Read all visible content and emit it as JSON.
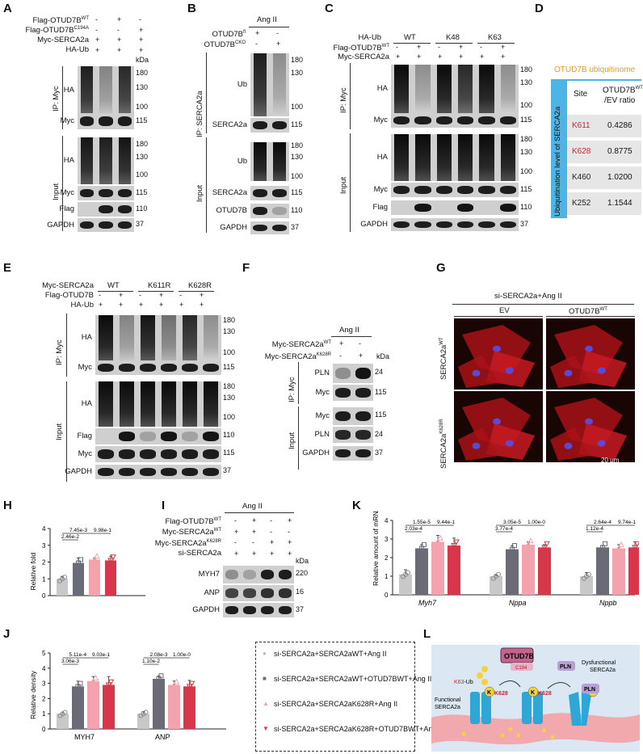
{
  "panels": {
    "A": {
      "letter": "A",
      "row_labels": [
        "Flag-OTUD7BWT",
        "Flag-OTUD7BC194A",
        "Myc-SERCA2a",
        "HA-Ub"
      ],
      "lane_signs": [
        [
          "-",
          "+",
          "-"
        ],
        [
          "-",
          "-",
          "+"
        ],
        [
          "+",
          "+",
          "+"
        ],
        [
          "+",
          "+",
          "+"
        ]
      ],
      "kda": "kDa",
      "blots": [
        "HA",
        "Myc",
        "HA",
        "Myc",
        "Flag",
        "GAPDH"
      ],
      "markers": [
        "180",
        "130",
        "100",
        "115",
        "180",
        "130",
        "100",
        "115",
        "110",
        "37"
      ],
      "group_labels": [
        "IP: Myc",
        "Input"
      ]
    },
    "B": {
      "letter": "B",
      "treatment": "Ang II",
      "row_labels": [
        "OTUD7Bfl",
        "OTUD7BCKO"
      ],
      "lane_signs": [
        [
          "+",
          "-"
        ],
        [
          "-",
          "+"
        ]
      ],
      "blots": [
        "Ub",
        "SERCA2a",
        "Ub",
        "SERCA2a",
        "OTUD7B",
        "GAPDH"
      ],
      "markers": [
        "180",
        "130",
        "100",
        "115",
        "180",
        "130",
        "100",
        "115",
        "110",
        "37"
      ],
      "group_labels": [
        "IP: SERCA2a",
        "Input"
      ]
    },
    "C": {
      "letter": "C",
      "row_labels": [
        "HA-Ub",
        "Flag-OTUD7BWT",
        "Myc-SERCA2a"
      ],
      "groups": [
        "WT",
        "K48",
        "K63"
      ],
      "lane_signs": [
        [
          "-",
          "+",
          "-",
          "+",
          "-",
          "+"
        ],
        [
          "+",
          "+",
          "+",
          "+",
          "+",
          "+"
        ]
      ],
      "kda": "kDa",
      "blots": [
        "HA",
        "Myc",
        "HA",
        "Myc",
        "Flag",
        "GAPDH"
      ],
      "markers": [
        "180",
        "130",
        "100",
        "115",
        "180",
        "130",
        "100",
        "115",
        "110",
        "37"
      ],
      "group_labels": [
        "IP: Myc",
        "Input"
      ]
    },
    "D": {
      "letter": "D",
      "title": "OTUD7B ubiquitinome",
      "side_label": "Ubiquitination level of SERCA2a",
      "col_site": "Site",
      "col_ratio": "OTUD7BWT /EV ratio",
      "rows": [
        {
          "site": "K611",
          "ratio": "0.4286",
          "color": "#d6202a"
        },
        {
          "site": "K628",
          "ratio": "0.8775",
          "color": "#d6202a"
        },
        {
          "site": "K460",
          "ratio": "1.0200",
          "color": "#222222"
        },
        {
          "site": "K252",
          "ratio": "1.1544",
          "color": "#222222"
        }
      ]
    },
    "E": {
      "letter": "E",
      "row_labels": [
        "Myc-SERCA2a",
        "Flag-OTUD7B",
        "HA-Ub"
      ],
      "groups": [
        "WT",
        "K611R",
        "K628R"
      ],
      "lane_signs": [
        [
          "-",
          "+",
          "-",
          "+",
          "-",
          "+"
        ],
        [
          "+",
          "+",
          "+",
          "+",
          "+",
          "+"
        ]
      ],
      "kda": "kDa",
      "blots": [
        "HA",
        "Myc",
        "HA",
        "Flag",
        "Myc",
        "GAPDH"
      ],
      "markers": [
        "180",
        "130",
        "100",
        "115",
        "180",
        "130",
        "100",
        "110",
        "115",
        "37"
      ],
      "group_labels": [
        "IP: Myc",
        "Input"
      ]
    },
    "F": {
      "letter": "F",
      "treatment": "Ang II",
      "row_labels": [
        "Myc-SERCA2aWT",
        "Myc-SERCA2aK628R"
      ],
      "lane_signs": [
        [
          "+",
          "-"
        ],
        [
          "-",
          "+"
        ]
      ],
      "kda": "kDa",
      "blots": [
        "PLN",
        "Myc",
        "Myc",
        "PLN",
        "GAPDH"
      ],
      "markers": [
        "24",
        "115",
        "115",
        "24",
        "37"
      ],
      "group_labels": [
        "IP: Myc",
        "Input"
      ]
    },
    "G": {
      "letter": "G",
      "header": "si-SERCA2a+Ang II",
      "cols": [
        "EV",
        "OTUD7BWT"
      ],
      "rows": [
        "SERCA2aWT",
        "SERCA2aK628R"
      ],
      "scale": "20 μm"
    },
    "H": {
      "letter": "H",
      "ylabel": "Relative fold"
    },
    "I": {
      "letter": "I",
      "treatment": "Ang II",
      "row_labels": [
        "Flag-OTUD7BWT",
        "Myc-SERCA2aWT",
        "Myc-SERCA2aK628R",
        "si-SERCA2a"
      ],
      "lane_signs": [
        [
          "-",
          "+",
          "-",
          "+"
        ],
        [
          "+",
          "+",
          "-",
          "-"
        ],
        [
          "-",
          "-",
          "+",
          "+"
        ],
        [
          "+",
          "+",
          "+",
          "+"
        ]
      ],
      "kda": "kDa",
      "blots": [
        "MYH7",
        "ANP",
        "GAPDH"
      ],
      "markers": [
        "220",
        "16",
        "37"
      ]
    },
    "J": {
      "letter": "J"
    },
    "K": {
      "letter": "K"
    },
    "L": {
      "letter": "L",
      "otud7b": "OTUD7B",
      "c194": "C194",
      "pln": "PLN",
      "k63": "K63-Ub",
      "k628": "K628",
      "functional": "Functional SERCA2a",
      "dysfunctional": "Dysfunctional SERCA2a"
    },
    "legend": {
      "items": [
        {
          "text": "si-SERCA2a+SERCA2aWT+Ang II",
          "color": "#b9b9b9",
          "shape": "circle"
        },
        {
          "text": "si-SERCA2a+SERCA2aWT+OTUD7BWT+Ang II",
          "color": "#6b6b78",
          "shape": "square"
        },
        {
          "text": "si-SERCA2a+SERCA2aK628R+Ang II",
          "color": "#f4a3ae",
          "shape": "triangle"
        },
        {
          "text": "si-SERCA2a+SERCA2aK628R+OTUD7BWT+Ang II",
          "color": "#d8364a",
          "shape": "triangle-down"
        }
      ]
    }
  },
  "chart_data": [
    {
      "type": "bar",
      "panel": "H",
      "ylabel": "Relative fold",
      "categories": [
        "SERCA2aWT+Ang II",
        "SERCA2aWT+OTUD7BWT+Ang II",
        "SERCA2aK628R+Ang II",
        "SERCA2aK628R+OTUD7BWT+Ang II"
      ],
      "values": [
        1.0,
        1.95,
        2.15,
        2.1
      ],
      "errors": [
        0.15,
        0.3,
        0.1,
        0.25
      ],
      "colors": [
        "#c8c8c8",
        "#6b6b78",
        "#f4a3ae",
        "#d8364a"
      ],
      "ylim": [
        0,
        4
      ],
      "yticks": [
        "0",
        "1",
        "2",
        "3",
        "4"
      ],
      "pvalues": [
        "2.46e-2",
        "7.45e-3",
        "9.98e-1"
      ]
    },
    {
      "type": "bar",
      "panel": "J",
      "ylabel": "Relative density",
      "groups": [
        "MYH7",
        "ANP"
      ],
      "series": [
        {
          "values": [
            1.0,
            1.0
          ],
          "errors": [
            0.1,
            0.15
          ]
        },
        {
          "values": [
            2.8,
            3.3
          ],
          "errors": [
            0.35,
            0.2
          ]
        },
        {
          "values": [
            3.15,
            2.9
          ],
          "errors": [
            0.3,
            0.25
          ]
        },
        {
          "values": [
            2.9,
            2.8
          ],
          "errors": [
            0.55,
            0.4
          ]
        }
      ],
      "colors": [
        "#c8c8c8",
        "#6b6b78",
        "#f4a3ae",
        "#d8364a"
      ],
      "ylim": [
        0,
        5
      ],
      "yticks": [
        "0",
        "1",
        "2",
        "3",
        "4",
        "5"
      ],
      "pvalues": {
        "MYH7": [
          "3.06e-3",
          "5.11e-4",
          "9.03e-1"
        ],
        "ANP": [
          "1.10e-2",
          "2.08e-3",
          "1.00e-0"
        ]
      }
    },
    {
      "type": "bar",
      "panel": "K",
      "ylabel": "Relative amount of mRNA",
      "groups": [
        "Myh7",
        "Nppa",
        "Nppb"
      ],
      "series": [
        {
          "values": [
            1.1,
            1.0,
            1.0
          ],
          "errors": [
            0.25,
            0.05,
            0.2
          ]
        },
        {
          "values": [
            2.5,
            2.45,
            2.55
          ],
          "errors": [
            0.2,
            0.2,
            0.1
          ]
        },
        {
          "values": [
            2.85,
            2.7,
            2.5
          ],
          "errors": [
            0.35,
            0.15,
            0.2
          ]
        },
        {
          "values": [
            2.65,
            2.55,
            2.55
          ],
          "errors": [
            0.4,
            0.15,
            0.3
          ]
        }
      ],
      "colors": [
        "#c8c8c8",
        "#6b6b78",
        "#f4a3ae",
        "#d8364a"
      ],
      "ylim": [
        0,
        4
      ],
      "yticks": [
        "0",
        "1",
        "2",
        "3",
        "4"
      ],
      "pvalues": {
        "Myh7": [
          "2.03e-4",
          "1.55e-5",
          "9.44e-1"
        ],
        "Nppa": [
          "3.77e-4",
          "3.05e-5",
          "1.00e-0"
        ],
        "Nppb": [
          "1.12e-4",
          "2.64e-4",
          "9.74e-1"
        ]
      }
    }
  ]
}
